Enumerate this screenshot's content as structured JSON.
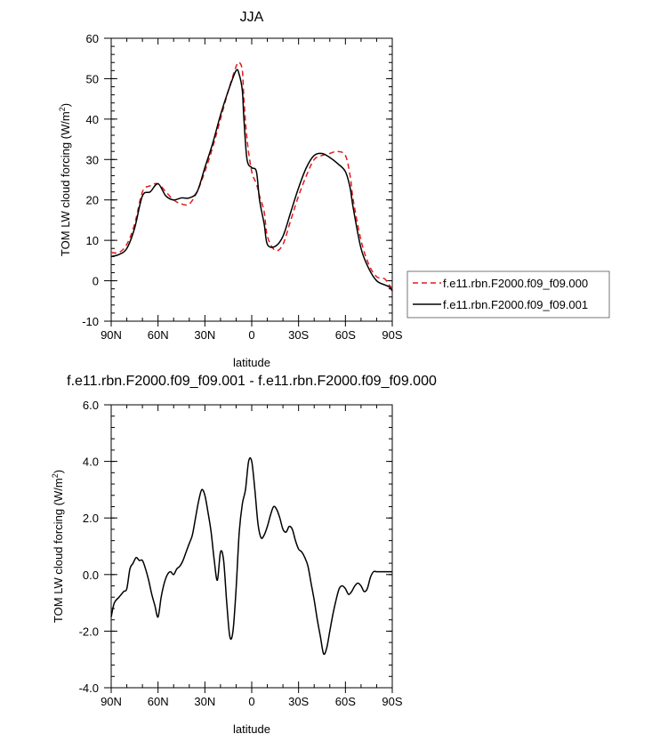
{
  "chart_data": [
    {
      "type": "line",
      "title": "JJA",
      "xlabel": "latitude",
      "ylabel": "TOM LW cloud forcing (W/m",
      "ylabel_sup": "2",
      "ylabel_close": ")",
      "xlim": [
        90,
        -90
      ],
      "ylim": [
        -10,
        60
      ],
      "x_ticks": [
        90,
        60,
        30,
        0,
        -30,
        -60,
        -90
      ],
      "x_tick_labels": [
        "90N",
        "60N",
        "30N",
        "0",
        "30S",
        "60S",
        "90S"
      ],
      "y_ticks": [
        -10,
        0,
        10,
        20,
        30,
        40,
        50,
        60
      ],
      "y_tick_labels": [
        "-10",
        "0",
        "10",
        "20",
        "30",
        "40",
        "50",
        "60"
      ],
      "legend_position": "right-bottom-outside",
      "series": [
        {
          "name": "f.e11.rbn.F2000.f09_f09.000",
          "color": "#e31a1c",
          "dash": "dashed",
          "x": [
            90,
            85,
            80,
            75,
            70,
            65,
            60,
            55,
            50,
            45,
            40,
            35,
            30,
            25,
            20,
            15,
            10,
            8,
            6,
            5,
            3,
            0,
            -3,
            -5,
            -8,
            -10,
            -15,
            -20,
            -25,
            -30,
            -35,
            -40,
            -45,
            -50,
            -55,
            -60,
            -63,
            -65,
            -70,
            -75,
            -80,
            -85,
            -88,
            -90
          ],
          "y": [
            7,
            7,
            9,
            14,
            22,
            23.5,
            24,
            22,
            20,
            19,
            19,
            22,
            27,
            33,
            40,
            47,
            53,
            54,
            52,
            45,
            35,
            27,
            24,
            21,
            17,
            11,
            7.5,
            9,
            15,
            21,
            26,
            30,
            31,
            31.5,
            32,
            31,
            26,
            20,
            10,
            4,
            1,
            0.5,
            -1,
            -2
          ]
        },
        {
          "name": "f.e11.rbn.F2000.f09_f09.001",
          "color": "#000000",
          "dash": "solid",
          "x": [
            90,
            85,
            80,
            75,
            70,
            65,
            60,
            55,
            50,
            45,
            40,
            35,
            30,
            25,
            20,
            15,
            10,
            8,
            6,
            5,
            3,
            0,
            -3,
            -5,
            -8,
            -10,
            -15,
            -20,
            -25,
            -30,
            -35,
            -40,
            -45,
            -50,
            -55,
            -60,
            -63,
            -65,
            -70,
            -75,
            -80,
            -85,
            -88,
            -90
          ],
          "y": [
            6,
            6.5,
            8,
            13,
            21,
            22,
            24,
            21,
            20,
            20.5,
            20.5,
            22,
            28,
            34,
            41,
            47,
            52,
            51,
            47,
            40,
            30,
            28,
            27,
            20,
            14,
            9,
            8.5,
            11,
            17,
            23,
            28,
            31,
            31.5,
            30.5,
            29,
            27,
            23,
            18,
            8,
            3,
            0,
            -1,
            -1.5,
            -2.5
          ]
        }
      ]
    },
    {
      "type": "line",
      "title": "f.e11.rbn.F2000.f09_f09.001 - f.e11.rbn.F2000.f09_f09.000",
      "xlabel": "latitude",
      "ylabel": "TOM LW cloud forcing (W/m",
      "ylabel_sup": "2",
      "ylabel_close": ")",
      "xlim": [
        90,
        -90
      ],
      "ylim": [
        -4,
        6
      ],
      "x_ticks": [
        90,
        60,
        30,
        0,
        -30,
        -60,
        -90
      ],
      "x_tick_labels": [
        "90N",
        "60N",
        "30N",
        "0",
        "30S",
        "60S",
        "90S"
      ],
      "y_ticks": [
        -4,
        -2,
        0,
        2,
        4,
        6
      ],
      "y_tick_labels": [
        "-4.0",
        "-2.0",
        "0.0",
        "2.0",
        "4.0",
        "6.0"
      ],
      "series": [
        {
          "color": "#000000",
          "dash": "solid",
          "x": [
            90,
            88,
            85,
            82,
            80,
            78,
            76,
            74,
            72,
            70,
            68,
            66,
            64,
            62,
            60,
            58,
            56,
            54,
            52,
            50,
            48,
            46,
            44,
            42,
            40,
            38,
            36,
            34,
            32,
            30,
            28,
            26,
            24,
            22,
            20,
            18,
            16,
            14,
            12,
            10,
            8,
            6,
            4,
            2,
            0,
            -2,
            -4,
            -6,
            -8,
            -10,
            -12,
            -14,
            -16,
            -18,
            -20,
            -22,
            -24,
            -26,
            -28,
            -30,
            -32,
            -34,
            -36,
            -38,
            -40,
            -42,
            -44,
            -46,
            -48,
            -50,
            -52,
            -54,
            -56,
            -58,
            -60,
            -62,
            -64,
            -66,
            -68,
            -70,
            -72,
            -74,
            -76,
            -78,
            -80,
            -82,
            -84,
            -86,
            -88,
            -90
          ],
          "y": [
            -1.5,
            -1.0,
            -0.8,
            -0.6,
            -0.5,
            0.2,
            0.4,
            0.6,
            0.5,
            0.5,
            0.2,
            -0.2,
            -0.7,
            -1.1,
            -1.5,
            -0.8,
            -0.3,
            0.0,
            0.1,
            0.0,
            0.2,
            0.3,
            0.5,
            0.8,
            1.1,
            1.4,
            2.0,
            2.6,
            3.0,
            2.8,
            2.2,
            1.5,
            0.5,
            -0.2,
            0.8,
            0.5,
            -1.0,
            -2.2,
            -2.0,
            -0.5,
            1.5,
            2.5,
            3.0,
            4.0,
            4.0,
            3.0,
            1.8,
            1.3,
            1.4,
            1.7,
            2.1,
            2.4,
            2.3,
            2.0,
            1.6,
            1.5,
            1.7,
            1.6,
            1.2,
            0.9,
            0.8,
            0.6,
            0.3,
            -0.3,
            -0.9,
            -1.6,
            -2.2,
            -2.8,
            -2.6,
            -2.0,
            -1.4,
            -0.9,
            -0.5,
            -0.4,
            -0.5,
            -0.7,
            -0.6,
            -0.4,
            -0.3,
            -0.4,
            -0.6,
            -0.5,
            -0.1,
            0.1,
            0.1,
            0.1,
            0.1,
            0.1,
            0.1,
            0.1
          ]
        }
      ]
    }
  ]
}
